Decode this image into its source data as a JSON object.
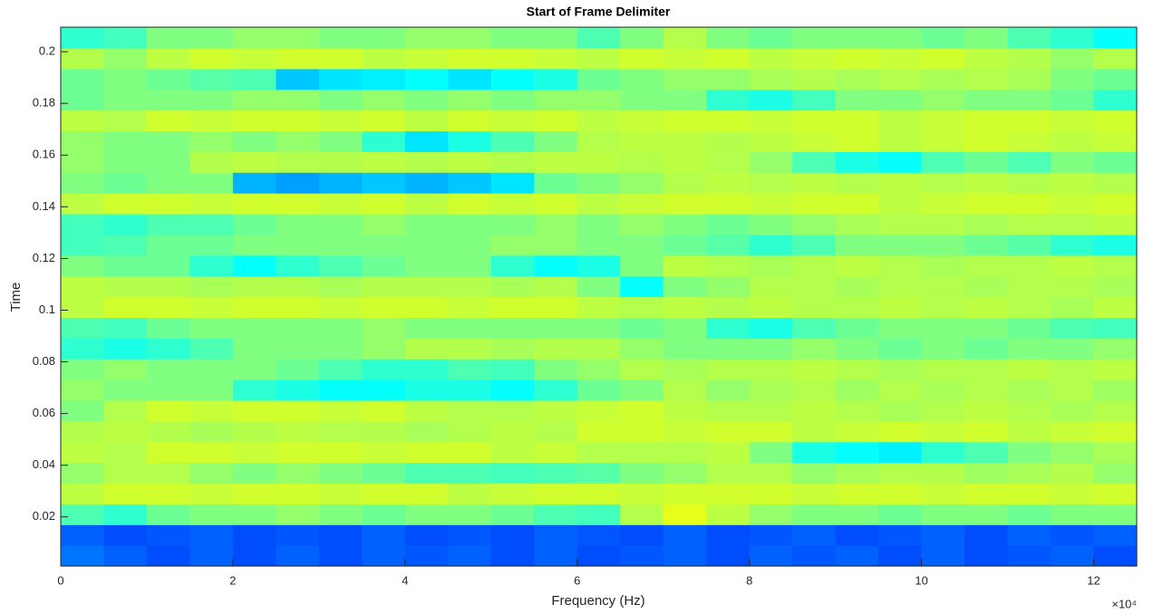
{
  "chart_data": {
    "type": "heatmap",
    "title": "Start of Frame Delimiter",
    "xlabel": "Frequency (Hz)",
    "ylabel": "Time",
    "x_exponent_label": "×10⁴",
    "colormap": "jet",
    "clim": [
      0,
      1
    ],
    "xlim": [
      0,
      125000
    ],
    "ylim": [
      0.001,
      0.2095
    ],
    "xticks": [
      0,
      {
        "value": 20000,
        "label": "2"
      },
      {
        "value": 40000,
        "label": "4"
      },
      {
        "value": 60000,
        "label": "6"
      },
      {
        "value": 80000,
        "label": "8"
      },
      {
        "value": 100000,
        "label": "10"
      },
      {
        "value": 120000,
        "label": "12"
      }
    ],
    "yticks": [
      0.02,
      0.04,
      0.06,
      0.08,
      0.1,
      0.12,
      0.14,
      0.16,
      0.18,
      0.2
    ],
    "z": [
      [
        0.24,
        0.22,
        0.2,
        0.22,
        0.2,
        0.22,
        0.2,
        0.22,
        0.21,
        0.22,
        0.2,
        0.22,
        0.2,
        0.21,
        0.22,
        0.2,
        0.22,
        0.21,
        0.22,
        0.2,
        0.22,
        0.2,
        0.21,
        0.22,
        0.2
      ],
      [
        0.22,
        0.2,
        0.21,
        0.22,
        0.2,
        0.21,
        0.2,
        0.22,
        0.2,
        0.21,
        0.2,
        0.22,
        0.21,
        0.2,
        0.22,
        0.2,
        0.21,
        0.22,
        0.2,
        0.21,
        0.22,
        0.2,
        0.22,
        0.21,
        0.22
      ],
      [
        0.45,
        0.42,
        0.48,
        0.5,
        0.5,
        0.52,
        0.5,
        0.48,
        0.5,
        0.5,
        0.48,
        0.45,
        0.44,
        0.55,
        0.6,
        0.56,
        0.52,
        0.5,
        0.5,
        0.48,
        0.5,
        0.5,
        0.48,
        0.5,
        0.5
      ],
      [
        0.56,
        0.58,
        0.58,
        0.57,
        0.58,
        0.58,
        0.57,
        0.58,
        0.58,
        0.56,
        0.57,
        0.58,
        0.58,
        0.57,
        0.58,
        0.58,
        0.58,
        0.57,
        0.58,
        0.58,
        0.57,
        0.58,
        0.58,
        0.57,
        0.58
      ],
      [
        0.52,
        0.55,
        0.55,
        0.52,
        0.5,
        0.52,
        0.5,
        0.48,
        0.45,
        0.45,
        0.44,
        0.45,
        0.46,
        0.5,
        0.52,
        0.55,
        0.55,
        0.52,
        0.54,
        0.55,
        0.55,
        0.53,
        0.54,
        0.55,
        0.52
      ],
      [
        0.56,
        0.55,
        0.58,
        0.58,
        0.57,
        0.58,
        0.58,
        0.57,
        0.58,
        0.58,
        0.56,
        0.57,
        0.55,
        0.55,
        0.55,
        0.56,
        0.5,
        0.4,
        0.38,
        0.36,
        0.42,
        0.45,
        0.5,
        0.52,
        0.54
      ],
      [
        0.55,
        0.56,
        0.55,
        0.54,
        0.55,
        0.56,
        0.55,
        0.55,
        0.54,
        0.55,
        0.56,
        0.55,
        0.58,
        0.58,
        0.57,
        0.58,
        0.58,
        0.56,
        0.57,
        0.58,
        0.57,
        0.58,
        0.56,
        0.57,
        0.58
      ],
      [
        0.5,
        0.55,
        0.58,
        0.57,
        0.58,
        0.58,
        0.57,
        0.58,
        0.56,
        0.55,
        0.55,
        0.56,
        0.57,
        0.58,
        0.56,
        0.55,
        0.55,
        0.56,
        0.55,
        0.54,
        0.55,
        0.56,
        0.55,
        0.54,
        0.55
      ],
      [
        0.52,
        0.5,
        0.5,
        0.5,
        0.42,
        0.4,
        0.38,
        0.38,
        0.4,
        0.4,
        0.38,
        0.42,
        0.48,
        0.5,
        0.55,
        0.52,
        0.54,
        0.55,
        0.53,
        0.55,
        0.54,
        0.55,
        0.54,
        0.55,
        0.53
      ],
      [
        0.5,
        0.52,
        0.5,
        0.5,
        0.5,
        0.48,
        0.45,
        0.42,
        0.42,
        0.45,
        0.44,
        0.5,
        0.52,
        0.55,
        0.54,
        0.55,
        0.55,
        0.56,
        0.55,
        0.54,
        0.55,
        0.55,
        0.56,
        0.55,
        0.56
      ],
      [
        0.42,
        0.4,
        0.42,
        0.45,
        0.5,
        0.5,
        0.5,
        0.52,
        0.55,
        0.55,
        0.54,
        0.55,
        0.55,
        0.52,
        0.5,
        0.5,
        0.5,
        0.52,
        0.5,
        0.48,
        0.5,
        0.48,
        0.5,
        0.5,
        0.52
      ],
      [
        0.45,
        0.44,
        0.48,
        0.5,
        0.5,
        0.5,
        0.5,
        0.52,
        0.5,
        0.5,
        0.5,
        0.5,
        0.5,
        0.48,
        0.5,
        0.42,
        0.4,
        0.45,
        0.48,
        0.5,
        0.5,
        0.5,
        0.48,
        0.45,
        0.44
      ],
      [
        0.56,
        0.58,
        0.58,
        0.57,
        0.58,
        0.58,
        0.57,
        0.58,
        0.58,
        0.57,
        0.58,
        0.58,
        0.56,
        0.55,
        0.56,
        0.55,
        0.56,
        0.55,
        0.55,
        0.56,
        0.55,
        0.56,
        0.55,
        0.54,
        0.56
      ],
      [
        0.56,
        0.55,
        0.55,
        0.54,
        0.55,
        0.55,
        0.54,
        0.55,
        0.55,
        0.55,
        0.54,
        0.55,
        0.5,
        0.38,
        0.5,
        0.52,
        0.55,
        0.55,
        0.54,
        0.55,
        0.55,
        0.54,
        0.55,
        0.55,
        0.54
      ],
      [
        0.5,
        0.48,
        0.48,
        0.42,
        0.38,
        0.42,
        0.45,
        0.48,
        0.5,
        0.5,
        0.42,
        0.38,
        0.4,
        0.5,
        0.56,
        0.55,
        0.54,
        0.55,
        0.56,
        0.55,
        0.54,
        0.55,
        0.55,
        0.56,
        0.55
      ],
      [
        0.44,
        0.45,
        0.48,
        0.48,
        0.5,
        0.5,
        0.5,
        0.5,
        0.5,
        0.5,
        0.52,
        0.52,
        0.5,
        0.5,
        0.48,
        0.46,
        0.42,
        0.45,
        0.5,
        0.5,
        0.5,
        0.48,
        0.46,
        0.42,
        0.4
      ],
      [
        0.44,
        0.42,
        0.45,
        0.45,
        0.48,
        0.5,
        0.5,
        0.52,
        0.5,
        0.5,
        0.5,
        0.52,
        0.5,
        0.52,
        0.5,
        0.48,
        0.5,
        0.52,
        0.54,
        0.55,
        0.55,
        0.54,
        0.55,
        0.55,
        0.56
      ],
      [
        0.56,
        0.58,
        0.58,
        0.57,
        0.58,
        0.58,
        0.57,
        0.58,
        0.56,
        0.58,
        0.57,
        0.58,
        0.56,
        0.57,
        0.58,
        0.58,
        0.57,
        0.58,
        0.58,
        0.56,
        0.57,
        0.58,
        0.58,
        0.57,
        0.58
      ],
      [
        0.5,
        0.48,
        0.5,
        0.5,
        0.3,
        0.28,
        0.3,
        0.32,
        0.3,
        0.32,
        0.35,
        0.48,
        0.5,
        0.52,
        0.55,
        0.56,
        0.55,
        0.56,
        0.55,
        0.56,
        0.55,
        0.56,
        0.55,
        0.56,
        0.55
      ],
      [
        0.52,
        0.5,
        0.5,
        0.55,
        0.56,
        0.55,
        0.55,
        0.56,
        0.55,
        0.56,
        0.55,
        0.56,
        0.56,
        0.55,
        0.56,
        0.55,
        0.52,
        0.45,
        0.4,
        0.38,
        0.45,
        0.48,
        0.45,
        0.5,
        0.48
      ],
      [
        0.52,
        0.5,
        0.5,
        0.52,
        0.5,
        0.52,
        0.5,
        0.42,
        0.35,
        0.4,
        0.45,
        0.5,
        0.55,
        0.56,
        0.56,
        0.55,
        0.56,
        0.57,
        0.58,
        0.56,
        0.57,
        0.58,
        0.57,
        0.56,
        0.57
      ],
      [
        0.56,
        0.55,
        0.58,
        0.57,
        0.58,
        0.58,
        0.57,
        0.58,
        0.56,
        0.58,
        0.57,
        0.58,
        0.56,
        0.57,
        0.58,
        0.58,
        0.57,
        0.58,
        0.58,
        0.56,
        0.57,
        0.58,
        0.58,
        0.57,
        0.58
      ],
      [
        0.48,
        0.5,
        0.5,
        0.5,
        0.52,
        0.52,
        0.5,
        0.52,
        0.5,
        0.52,
        0.5,
        0.52,
        0.52,
        0.5,
        0.5,
        0.42,
        0.4,
        0.44,
        0.5,
        0.5,
        0.52,
        0.5,
        0.5,
        0.48,
        0.42
      ],
      [
        0.48,
        0.5,
        0.48,
        0.46,
        0.45,
        0.32,
        0.35,
        0.36,
        0.38,
        0.35,
        0.38,
        0.4,
        0.48,
        0.5,
        0.52,
        0.52,
        0.54,
        0.55,
        0.54,
        0.55,
        0.54,
        0.55,
        0.54,
        0.5,
        0.48
      ],
      [
        0.55,
        0.52,
        0.56,
        0.58,
        0.57,
        0.58,
        0.58,
        0.56,
        0.57,
        0.58,
        0.58,
        0.57,
        0.56,
        0.58,
        0.57,
        0.58,
        0.56,
        0.57,
        0.58,
        0.57,
        0.58,
        0.56,
        0.55,
        0.52,
        0.55
      ],
      [
        0.42,
        0.44,
        0.5,
        0.5,
        0.52,
        0.52,
        0.5,
        0.5,
        0.52,
        0.52,
        0.5,
        0.5,
        0.45,
        0.5,
        0.55,
        0.5,
        0.48,
        0.5,
        0.5,
        0.5,
        0.48,
        0.5,
        0.45,
        0.42,
        0.38
      ]
    ]
  }
}
